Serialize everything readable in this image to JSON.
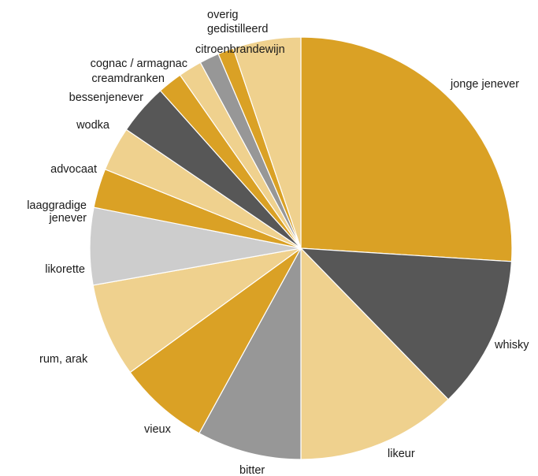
{
  "chart_data": {
    "type": "pie",
    "start_angle_deg": 0,
    "direction": "clockwise",
    "slices": [
      {
        "label": [
          "jonge jenever"
        ],
        "value": 26.0,
        "color": "#DAA125"
      },
      {
        "label": [
          "whisky"
        ],
        "value": 11.7,
        "color": "#575757"
      },
      {
        "label": [
          "likeur"
        ],
        "value": 12.3,
        "color": "#EFD18E"
      },
      {
        "label": [
          "bitter"
        ],
        "value": 8.0,
        "color": "#979797"
      },
      {
        "label": [
          "vieux"
        ],
        "value": 7.0,
        "color": "#DAA125"
      },
      {
        "label": [
          "rum, arak"
        ],
        "value": 7.2,
        "color": "#EFD18E"
      },
      {
        "label": [
          "likorette"
        ],
        "value": 5.9,
        "color": "#CDCDCD"
      },
      {
        "label": [
          "laaggradige",
          "jenever"
        ],
        "value": 3.0,
        "color": "#DAA125"
      },
      {
        "label": [
          "advocaat"
        ],
        "value": 3.4,
        "color": "#EFD18E"
      },
      {
        "label": [
          "wodka"
        ],
        "value": 3.9,
        "color": "#575757"
      },
      {
        "label": [
          "bessenjenever"
        ],
        "value": 1.9,
        "color": "#DAA125"
      },
      {
        "label": [
          "creamdranken"
        ],
        "value": 1.8,
        "color": "#EFD18E"
      },
      {
        "label": [
          "cognac / armagnac"
        ],
        "value": 1.5,
        "color": "#979797"
      },
      {
        "label": [
          "citroenbrandewijn"
        ],
        "value": 1.2,
        "color": "#DAA125"
      },
      {
        "label": [
          "overig",
          "gedistilleerd"
        ],
        "value": 5.2,
        "color": "#EFD18E"
      }
    ]
  }
}
